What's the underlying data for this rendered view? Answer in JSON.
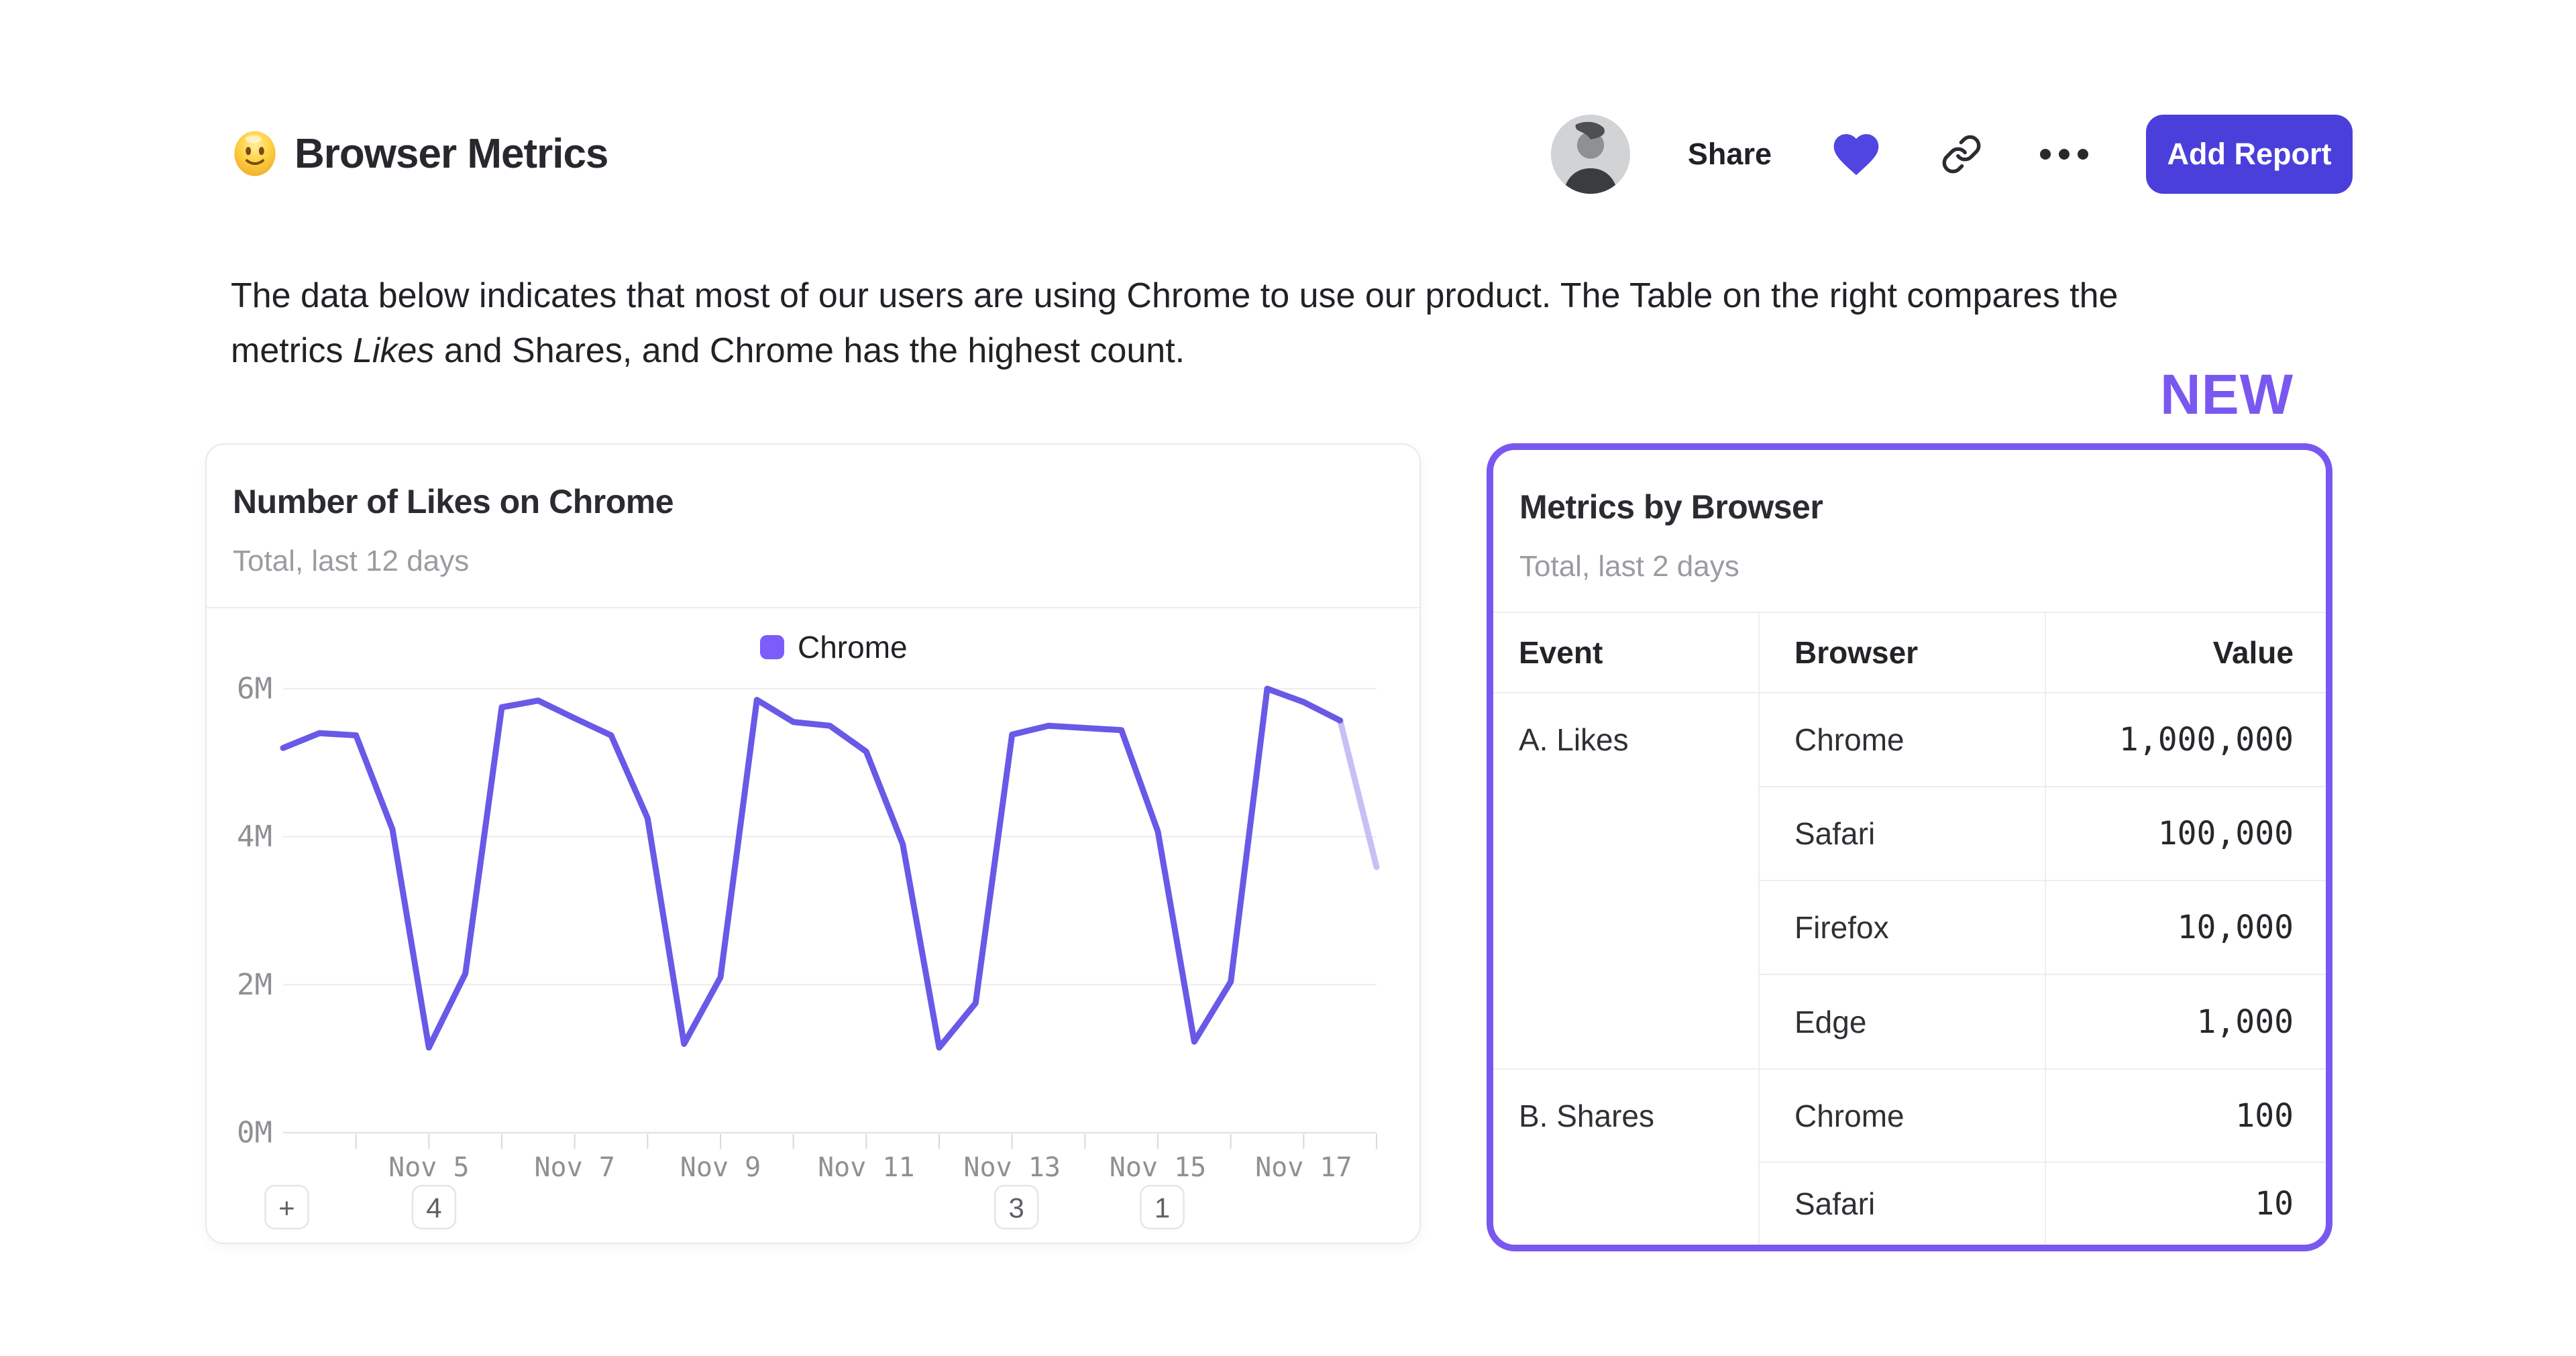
{
  "header": {
    "emoji": "slightly-smiling-face",
    "title": "Browser Metrics",
    "share_label": "Share",
    "add_report_label": "Add Report"
  },
  "description": {
    "line1": "The data below indicates that most of our users are using Chrome to use our product. The Table on the right compares the",
    "line2_pre": "metrics ",
    "line2_italic": "Likes",
    "line2_post": " and Shares, and Chrome has the highest count."
  },
  "new_badge": "NEW",
  "chart_card": {
    "title": "Number of Likes on Chrome",
    "subtitle": "Total, last 12 days",
    "legend": [
      {
        "name": "Chrome",
        "swatch_color": "#7c5dfa"
      }
    ],
    "annotations": [
      {
        "label": "+",
        "day": 3.05
      },
      {
        "label": "4",
        "day": 5.07
      },
      {
        "label": "3",
        "day": 13.06
      },
      {
        "label": "1",
        "day": 15.06
      }
    ],
    "chart_data": {
      "type": "line",
      "title": "Number of Likes on Chrome",
      "xlabel": "",
      "ylabel": "",
      "unit": "millions of likes",
      "grid": true,
      "legend_position": "top-center",
      "xlim": [
        3,
        18
      ],
      "ylim": [
        0,
        6
      ],
      "yticks": [
        {
          "value": 6,
          "label": "6M"
        },
        {
          "value": 4,
          "label": "4M"
        },
        {
          "value": 2,
          "label": "2M"
        },
        {
          "value": 0,
          "label": "0M"
        }
      ],
      "xticks_days": [
        4,
        5,
        6,
        7,
        8,
        9,
        10,
        11,
        12,
        13,
        14,
        15,
        16,
        17,
        18
      ],
      "xtick_labels": [
        {
          "day": 5,
          "label": "Nov 5"
        },
        {
          "day": 7,
          "label": "Nov 7"
        },
        {
          "day": 9,
          "label": "Nov 9"
        },
        {
          "day": 11,
          "label": "Nov 11"
        },
        {
          "day": 13,
          "label": "Nov 13"
        },
        {
          "day": 15,
          "label": "Nov 15"
        },
        {
          "day": 17,
          "label": "Nov 17"
        }
      ],
      "series": [
        {
          "name": "Chrome",
          "color": "#6959e7",
          "faded_color": "#c8c0f5",
          "faded_from_x": 17.5,
          "x": [
            3,
            3.5,
            4,
            4.5,
            5,
            5.5,
            6,
            6.5,
            7,
            7.5,
            8,
            8.5,
            9,
            9.5,
            10,
            10.5,
            11,
            11.5,
            12,
            12.5,
            13,
            13.5,
            14,
            14.5,
            15,
            15.5,
            16,
            16.5,
            17,
            17.5,
            18
          ],
          "y_millions": [
            5.2,
            5.4,
            5.37,
            4.1,
            1.15,
            2.15,
            5.75,
            5.84,
            5.6,
            5.37,
            4.25,
            1.2,
            2.1,
            5.85,
            5.55,
            5.5,
            5.15,
            3.9,
            1.15,
            1.75,
            5.38,
            5.5,
            5.47,
            5.44,
            4.07,
            1.23,
            2.04,
            6.0,
            5.82,
            5.57,
            3.59
          ]
        }
      ]
    }
  },
  "table_card": {
    "title": "Metrics by Browser",
    "subtitle": "Total, last 2 days",
    "columns": [
      "Event",
      "Browser",
      "Value"
    ],
    "groups": [
      {
        "event": "A. Likes",
        "rows": [
          {
            "browser": "Chrome",
            "value": "1,000,000"
          },
          {
            "browser": "Safari",
            "value": "100,000"
          },
          {
            "browser": "Firefox",
            "value": "10,000"
          },
          {
            "browser": "Edge",
            "value": "1,000"
          }
        ]
      },
      {
        "event": "B. Shares",
        "rows": [
          {
            "browser": "Chrome",
            "value": "100"
          },
          {
            "browser": "Safari",
            "value": "10"
          }
        ]
      }
    ]
  },
  "colors": {
    "accent_purple": "#7a58f0",
    "button_purple": "#4b3fdb",
    "heart_purple": "#5145e1",
    "line_purple": "#6959e7",
    "line_faded": "#c8c0f5",
    "gridline": "#ededef",
    "text_dark": "#24262b",
    "text_gray": "#9b9ba1"
  }
}
